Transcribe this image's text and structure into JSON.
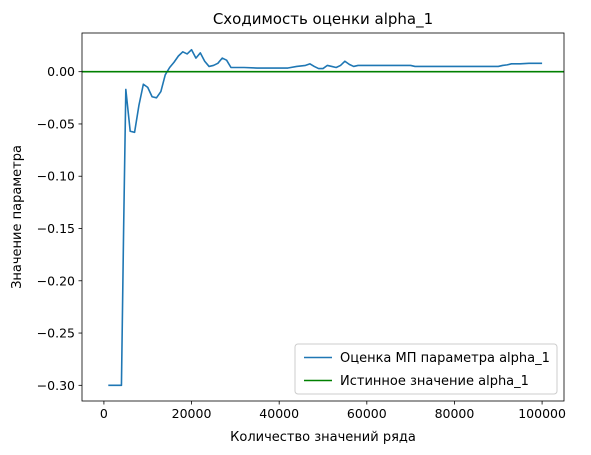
{
  "chart_data": {
    "type": "line",
    "title": "Сходимость оценки alpha_1",
    "xlabel": "Количество значений ряда",
    "ylabel": "Значение параметра",
    "xlim": [
      -5000,
      105000
    ],
    "ylim": [
      -0.315,
      0.037
    ],
    "xticks": [
      0,
      20000,
      40000,
      60000,
      80000,
      100000
    ],
    "xtick_labels": [
      "0",
      "20000",
      "40000",
      "60000",
      "80000",
      "100000"
    ],
    "yticks": [
      0.0,
      -0.05,
      -0.1,
      -0.15,
      -0.2,
      -0.25,
      -0.3
    ],
    "ytick_labels": [
      "0.00",
      "−0.05",
      "−0.10",
      "−0.15",
      "−0.20",
      "−0.25",
      "−0.30"
    ],
    "grid": false,
    "legend_position": "lower-right",
    "series": [
      {
        "name": "Оценка МП параметра alpha_1",
        "color": "#1f77b4",
        "style": "solid",
        "x": [
          1000,
          2000,
          3000,
          4000,
          4500,
          5000,
          6000,
          7000,
          8000,
          9000,
          10000,
          11000,
          12000,
          13000,
          14000,
          15000,
          16000,
          17000,
          18000,
          19000,
          20000,
          21000,
          22000,
          23000,
          24000,
          25000,
          26000,
          27000,
          28000,
          29000,
          30000,
          32000,
          35000,
          38000,
          40000,
          42000,
          44000,
          46000,
          47000,
          48000,
          49000,
          50000,
          51000,
          52000,
          53000,
          54000,
          55000,
          56000,
          57000,
          58000,
          60000,
          62000,
          65000,
          68000,
          70000,
          71000,
          75000,
          80000,
          85000,
          90000,
          91000,
          92000,
          93000,
          94000,
          95000,
          97000,
          100000
        ],
        "y": [
          -0.3,
          -0.3,
          -0.3,
          -0.3,
          -0.15,
          -0.017,
          -0.057,
          -0.058,
          -0.032,
          -0.012,
          -0.015,
          -0.024,
          -0.025,
          -0.019,
          -0.003,
          0.004,
          0.009,
          0.015,
          0.019,
          0.017,
          0.021,
          0.013,
          0.018,
          0.01,
          0.005,
          0.006,
          0.008,
          0.013,
          0.011,
          0.004,
          0.004,
          0.004,
          0.0035,
          0.0035,
          0.0035,
          0.0035,
          0.005,
          0.006,
          0.0075,
          0.005,
          0.003,
          0.003,
          0.006,
          0.005,
          0.004,
          0.006,
          0.01,
          0.007,
          0.005,
          0.006,
          0.006,
          0.006,
          0.006,
          0.006,
          0.006,
          0.005,
          0.005,
          0.005,
          0.005,
          0.005,
          0.006,
          0.0065,
          0.0075,
          0.0075,
          0.0075,
          0.008,
          0.008
        ]
      },
      {
        "name": "Истинное значение alpha_1",
        "color": "#008000",
        "style": "solid",
        "horizontal_line": true,
        "y_value": 0.0
      }
    ]
  }
}
